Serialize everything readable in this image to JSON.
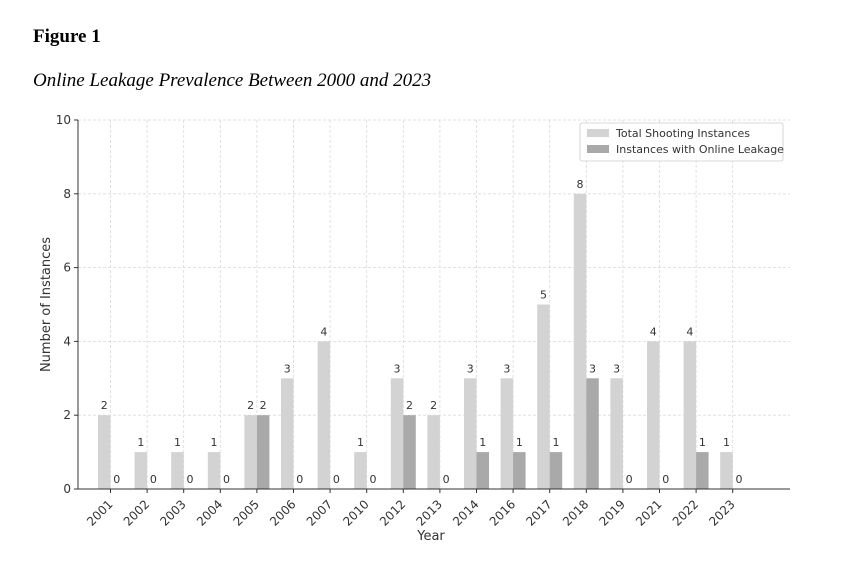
{
  "figure": {
    "label": "Figure 1",
    "caption": "Online Leakage Prevalence Between 2000 and 2023"
  },
  "colors": {
    "series1": "#d3d3d3",
    "series2": "#a9a9a9",
    "axis": "#333333",
    "grid": "#d9d9d9"
  },
  "chart_data": {
    "type": "bar",
    "title": "",
    "xlabel": "Year",
    "ylabel": "Number of Instances",
    "ylim": [
      0,
      10
    ],
    "yticks": [
      0,
      2,
      4,
      6,
      8,
      10
    ],
    "grid": true,
    "legend_position": "top-right",
    "categories": [
      "2001",
      "2002",
      "2003",
      "2004",
      "2005",
      "2006",
      "2007",
      "2010",
      "2012",
      "2013",
      "2014",
      "2016",
      "2017",
      "2018",
      "2019",
      "2021",
      "2022",
      "2023"
    ],
    "series": [
      {
        "name": "Total Shooting Instances",
        "values": [
          2,
          1,
          1,
          1,
          2,
          3,
          4,
          1,
          3,
          2,
          3,
          3,
          5,
          8,
          3,
          4,
          4,
          1
        ]
      },
      {
        "name": "Instances with Online Leakage",
        "values": [
          0,
          0,
          0,
          0,
          2,
          0,
          0,
          0,
          2,
          0,
          1,
          1,
          1,
          3,
          0,
          0,
          1,
          0
        ]
      }
    ]
  }
}
